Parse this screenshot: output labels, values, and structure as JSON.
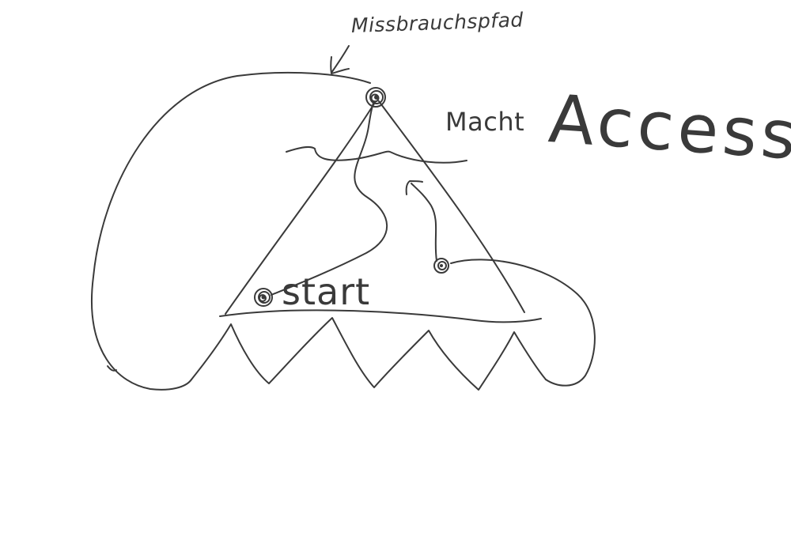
{
  "diagram": {
    "labels": {
      "missbrauchspfad": "Missbrauchspfad",
      "macht": "Macht",
      "access": "Access",
      "start": "start"
    },
    "colors": {
      "ink": "#3a3a3a",
      "background": "#ffffff"
    }
  }
}
